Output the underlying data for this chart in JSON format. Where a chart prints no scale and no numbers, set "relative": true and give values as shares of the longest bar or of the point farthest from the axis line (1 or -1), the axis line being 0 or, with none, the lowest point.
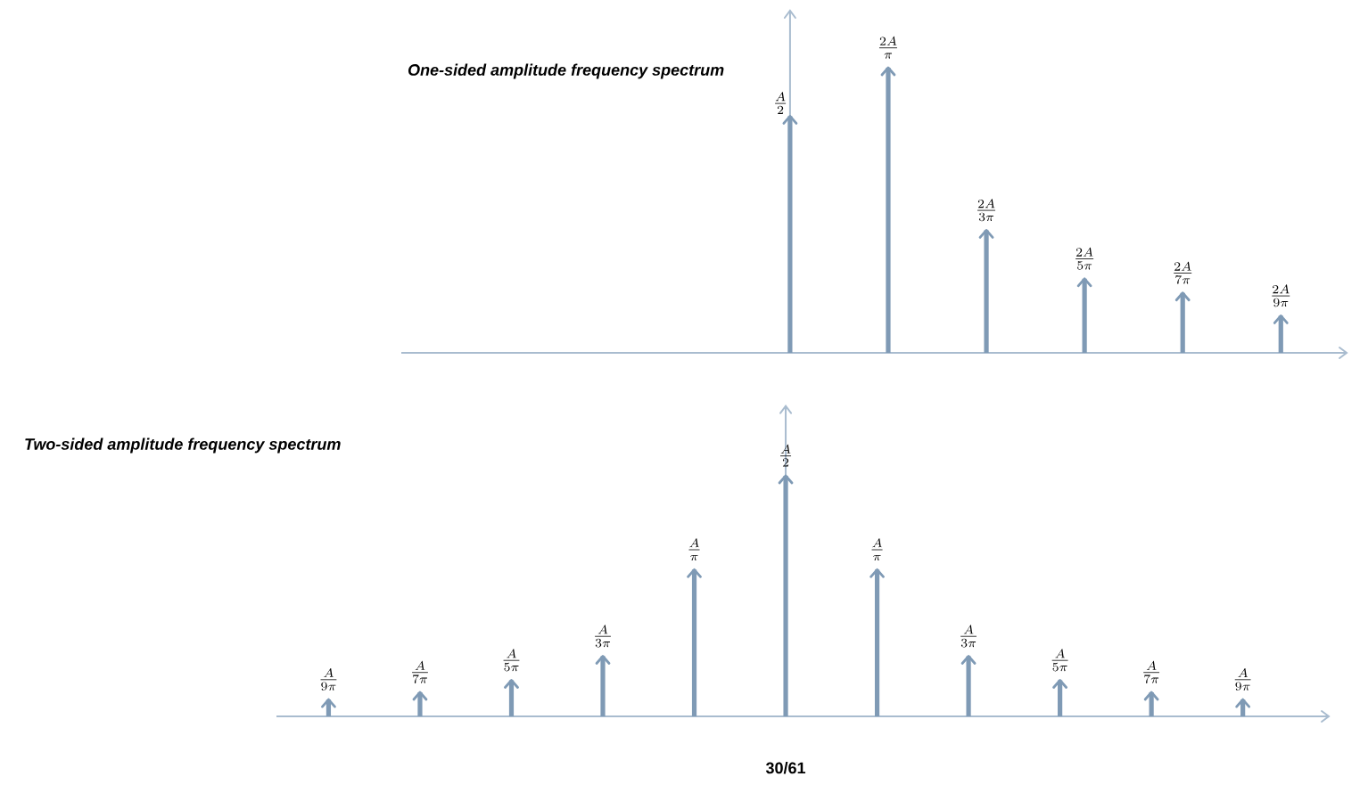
{
  "chart_data": [
    {
      "type": "bar",
      "title": "One-sided amplitude frequency spectrum",
      "relative": true,
      "color": "#7f9ab5",
      "categories": [
        null,
        null,
        null,
        null,
        null,
        null
      ],
      "values": [
        0.83,
        1,
        0.43,
        0.26,
        0.21,
        0.13
      ],
      "annotations": [
        {
          "text": "\\frac{A}{2}"
        },
        {
          "text": "\\frac{2A}{\\pi}"
        },
        {
          "text": "\\frac{2A}{3\\pi}"
        },
        {
          "text": "\\frac{2A}{5\\pi}"
        },
        {
          "text": "\\frac{2A}{7\\pi}"
        },
        {
          "text": "\\frac{2A}{9\\pi}"
        }
      ]
    },
    {
      "type": "bar",
      "title": "Two-sided amplitude frequency spectrum",
      "relative": true,
      "color": "#7f9ab5",
      "categories": [
        null,
        null,
        null,
        null,
        null,
        null,
        null,
        null,
        null,
        null,
        null
      ],
      "values": [
        0.07,
        0.1,
        0.15,
        0.25,
        0.61,
        1,
        0.61,
        0.25,
        0.15,
        0.1,
        0.07
      ],
      "annotations": [
        {
          "text": "\\frac{A}{9\\pi}"
        },
        {
          "text": "\\frac{A}{7\\pi}"
        },
        {
          "text": "\\frac{A}{5\\pi}"
        },
        {
          "text": "\\frac{A}{3\\pi}"
        },
        {
          "text": "\\frac{A}{\\pi}"
        },
        {
          "text": "\\frac{A}{2}"
        },
        {
          "text": "\\frac{A}{\\pi}"
        },
        {
          "text": "\\frac{A}{3\\pi}"
        },
        {
          "text": "\\frac{A}{5\\pi}"
        },
        {
          "text": "\\frac{A}{7\\pi}"
        },
        {
          "text": "\\frac{A}{9\\pi}"
        },
        "30/61"
      ]
    }
  ]
}
